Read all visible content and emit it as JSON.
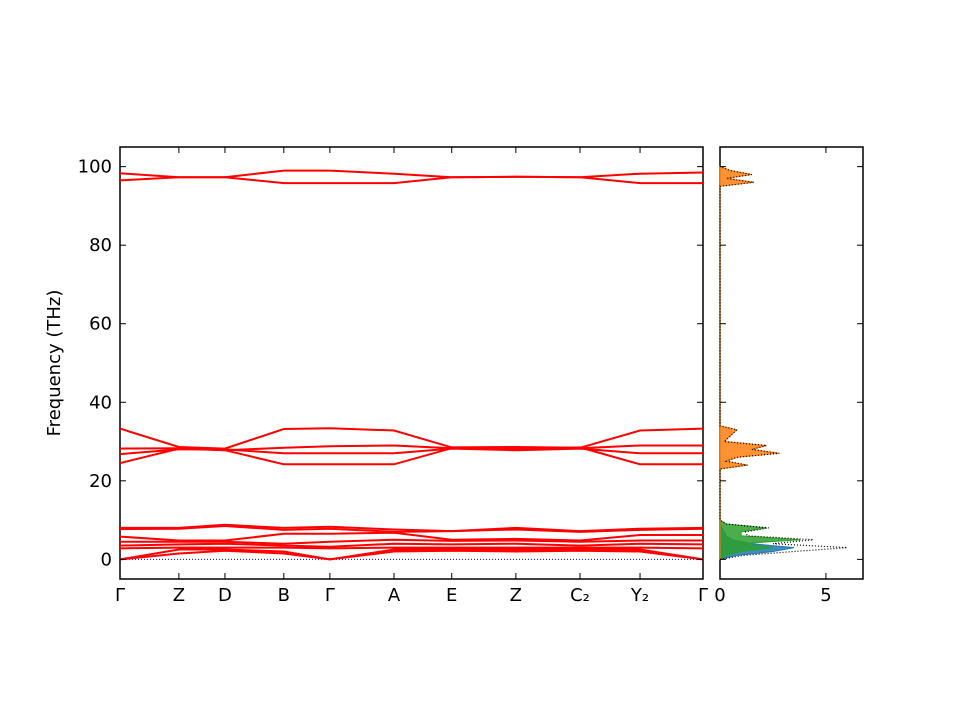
{
  "chart_data": [
    {
      "type": "line",
      "ylabel": "Frequency (THz)",
      "x": [
        0,
        0.101,
        0.18,
        0.281,
        0.36,
        0.47,
        0.569,
        0.679,
        0.789,
        0.892,
        1.0
      ],
      "xlim": [
        0,
        1.0
      ],
      "xticks": [
        {
          "value": 0,
          "label": "Γ"
        },
        {
          "value": 0.101,
          "label": "Z"
        },
        {
          "value": 0.18,
          "label": "D"
        },
        {
          "value": 0.281,
          "label": "B"
        },
        {
          "value": 0.36,
          "label": "Γ"
        },
        {
          "value": 0.47,
          "label": "A"
        },
        {
          "value": 0.569,
          "label": "E"
        },
        {
          "value": 0.679,
          "label": "Z"
        },
        {
          "value": 0.789,
          "label": "C₂"
        },
        {
          "value": 0.892,
          "label": "Y₂"
        },
        {
          "value": 1.0,
          "label": "Γ"
        }
      ],
      "ylim": [
        -5,
        105
      ],
      "yticks": [
        0,
        20,
        40,
        60,
        80,
        100
      ],
      "zero_line_color": "#0000ff",
      "series": [
        {
          "color": "#ff0000",
          "values": [
            98.3,
            97.3,
            97.3,
            99,
            99,
            98.2,
            97.3,
            97.4,
            97.3,
            98.2,
            98.5
          ]
        },
        {
          "color": "#ff0000",
          "values": [
            96.5,
            97.3,
            97.3,
            95.8,
            95.8,
            95.8,
            97.3,
            97.4,
            97.3,
            95.8,
            95.8
          ]
        },
        {
          "color": "#ff0000",
          "values": [
            33.3,
            28.6,
            28.2,
            33.2,
            33.4,
            32.8,
            28.5,
            28.6,
            28.4,
            32.8,
            33.3
          ]
        },
        {
          "color": "#ff0000",
          "values": [
            28.2,
            28.3,
            27.8,
            28.4,
            28.8,
            29,
            28.3,
            28.5,
            28.3,
            29,
            29
          ]
        },
        {
          "color": "#ff0000",
          "values": [
            26.8,
            28,
            28,
            27,
            27,
            27,
            28.2,
            27.8,
            28.2,
            27,
            27
          ]
        },
        {
          "color": "#ff0000",
          "values": [
            24.5,
            28.2,
            27.8,
            24.2,
            24.2,
            24.2,
            28.3,
            28,
            28.5,
            24.2,
            24.2
          ]
        },
        {
          "color": "#ff0000",
          "values": [
            8,
            8,
            8.8,
            8,
            8.3,
            7.6,
            7.2,
            8,
            7.2,
            7.8,
            8
          ]
        },
        {
          "color": "#ff0000",
          "values": [
            7.7,
            7.8,
            8.5,
            7.5,
            7.8,
            7,
            7.2,
            7.6,
            7,
            7.5,
            7.8
          ]
        },
        {
          "color": "#ff0000",
          "values": [
            5.8,
            4.8,
            4.8,
            6.5,
            6.5,
            6.8,
            5,
            5.2,
            4.8,
            6.2,
            6.2
          ]
        },
        {
          "color": "#ff0000",
          "values": [
            4.5,
            4.5,
            4.5,
            4,
            4.5,
            5,
            4.7,
            4.8,
            4.5,
            4.8,
            4.8
          ]
        },
        {
          "color": "#ff0000",
          "values": [
            3.5,
            3.8,
            4,
            3.5,
            3.2,
            4,
            3.8,
            4,
            3.5,
            4,
            3.8
          ]
        },
        {
          "color": "#ff0000",
          "values": [
            2.8,
            3,
            3,
            3,
            2.8,
            3,
            3,
            3,
            3,
            3,
            2.8
          ]
        },
        {
          "color": "#ff0000",
          "values": [
            0,
            2.5,
            2.5,
            2,
            0,
            2.5,
            2.5,
            2.5,
            2.5,
            2.5,
            0
          ]
        },
        {
          "color": "#ff0000",
          "values": [
            0,
            1.5,
            2.2,
            1.5,
            0,
            2,
            2.2,
            2,
            2.2,
            2,
            0
          ]
        }
      ]
    },
    {
      "type": "dos",
      "sharey": true,
      "y": [
        0,
        1,
        2,
        3,
        4,
        5,
        6,
        7,
        8,
        9,
        10,
        23,
        24,
        25,
        26,
        27,
        28,
        29,
        30,
        33,
        34,
        94,
        95,
        96,
        97,
        98,
        99,
        100
      ],
      "xlim": [
        0,
        6.75
      ],
      "xticks": [
        0,
        5
      ],
      "series": [
        {
          "color": "#1f77b4",
          "fill": true,
          "values": [
            0,
            0.8,
            2.5,
            3.5,
            1.5,
            0.6,
            0.3,
            0.2,
            0.1,
            0,
            0,
            0,
            0,
            0,
            0,
            0,
            0,
            0,
            0,
            0,
            0,
            0,
            0,
            0,
            0,
            0,
            0,
            0
          ]
        },
        {
          "color": "#2ca02c",
          "fill": true,
          "values": [
            0,
            0.3,
            1,
            2.5,
            1,
            3.8,
            1,
            1,
            2.2,
            0.3,
            0,
            0,
            0,
            0,
            0,
            0,
            0,
            0,
            0,
            0,
            0,
            0,
            0,
            0,
            0,
            0,
            0,
            0
          ]
        },
        {
          "color": "#ff7f0e",
          "fill": true,
          "values": [
            0,
            0,
            0,
            0,
            0,
            0,
            0,
            0,
            0,
            0,
            0,
            0,
            1.3,
            0.3,
            0.8,
            2.8,
            1.5,
            2.2,
            0.2,
            0.8,
            0,
            0,
            0,
            1.6,
            0.3,
            1.5,
            0.5,
            0
          ]
        },
        {
          "color": "#000000",
          "fill": false,
          "line_style": "dotted",
          "values": [
            0,
            1.1,
            3.5,
            6,
            2.5,
            4.4,
            1.3,
            1.2,
            2.3,
            0.3,
            0,
            0,
            1.3,
            0.3,
            0.8,
            2.8,
            1.5,
            2.2,
            0.2,
            0.8,
            0,
            0,
            0,
            1.6,
            0.3,
            1.5,
            0.5,
            0
          ]
        }
      ]
    }
  ]
}
